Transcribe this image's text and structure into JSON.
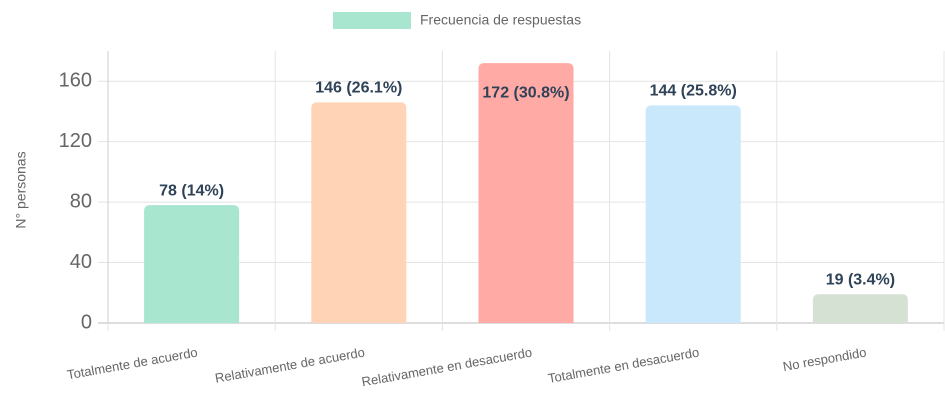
{
  "chart_data": {
    "type": "bar",
    "categories": [
      "Totalmente de acuerdo",
      "Relativamente de acuerdo",
      "Relativamente en desacuerdo",
      "Totalmente en desacuerdo",
      "No respondido"
    ],
    "series": [
      {
        "name": "Frecuencia de respuestas",
        "color": "#a8e6cf",
        "colors": [
          "#a8e6cf",
          "#ffd3b6",
          "#ffaaa5",
          "#c9e8fb",
          "#d5e2d3"
        ],
        "values": [
          78,
          146,
          172,
          144,
          19
        ],
        "value_labels": [
          "78 (14%)",
          "146 (26.1%)",
          "172 (30.8%)",
          "144 (25.8%)",
          "19 (3.4%)"
        ]
      }
    ],
    "ylabel": "N° personas",
    "ylim": [
      0,
      180
    ],
    "yticks": [
      0,
      40,
      80,
      120,
      160
    ],
    "grid": true,
    "legend": "top"
  }
}
